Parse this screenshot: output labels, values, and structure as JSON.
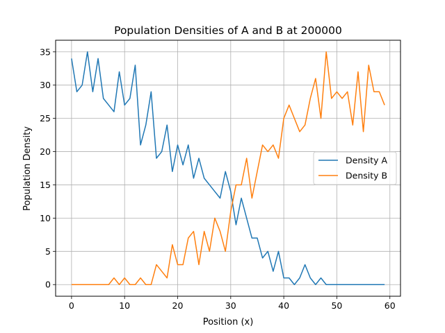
{
  "chart_data": {
    "type": "line",
    "title": "Population Densities of A and B at 200000",
    "xlabel": "Position (x)",
    "ylabel": "Population Density",
    "xlim": [
      -3,
      62
    ],
    "ylim": [
      -1.75,
      36.75
    ],
    "xticks": [
      0,
      10,
      20,
      30,
      40,
      50,
      60
    ],
    "yticks": [
      0,
      5,
      10,
      15,
      20,
      25,
      30,
      35
    ],
    "grid": true,
    "legend_position": "center-right",
    "x": [
      0,
      1,
      2,
      3,
      4,
      5,
      6,
      7,
      8,
      9,
      10,
      11,
      12,
      13,
      14,
      15,
      16,
      17,
      18,
      19,
      20,
      21,
      22,
      23,
      24,
      25,
      26,
      27,
      28,
      29,
      30,
      31,
      32,
      33,
      34,
      35,
      36,
      37,
      38,
      39,
      40,
      41,
      42,
      43,
      44,
      45,
      46,
      47,
      48,
      49,
      50,
      51,
      52,
      53,
      54,
      55,
      56,
      57,
      58,
      59
    ],
    "series": [
      {
        "name": "Density A",
        "color": "#1f77b4",
        "values": [
          34,
          29,
          30,
          35,
          29,
          34,
          28,
          27,
          26,
          32,
          27,
          28,
          33,
          21,
          24,
          29,
          19,
          20,
          24,
          17,
          21,
          18,
          21,
          16,
          19,
          16,
          15,
          14,
          13,
          17,
          14,
          9,
          13,
          10,
          7,
          7,
          4,
          5,
          2,
          5,
          1,
          1,
          0,
          1,
          3,
          1,
          0,
          1,
          0,
          0,
          0,
          0,
          0,
          0,
          0,
          0,
          0,
          0,
          0,
          0
        ]
      },
      {
        "name": "Density B",
        "color": "#ff7f0e",
        "values": [
          0,
          0,
          0,
          0,
          0,
          0,
          0,
          0,
          1,
          0,
          1,
          0,
          0,
          1,
          0,
          0,
          3,
          2,
          1,
          6,
          3,
          3,
          7,
          8,
          3,
          8,
          5,
          10,
          8,
          5,
          11,
          15,
          15,
          19,
          13,
          17,
          21,
          20,
          21,
          19,
          25,
          27,
          25,
          23,
          24,
          28,
          31,
          25,
          35,
          28,
          29,
          28,
          29,
          24,
          32,
          23,
          33,
          29,
          29,
          27
        ]
      }
    ]
  }
}
